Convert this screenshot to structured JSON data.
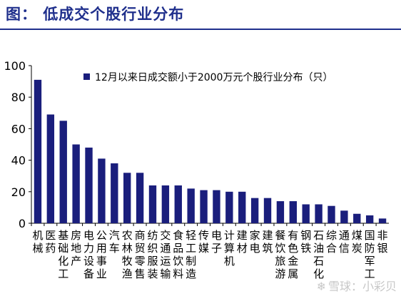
{
  "figure": {
    "title": "图： 低成交个股行业分布",
    "watermark": "雪球：小彩贝"
  },
  "chart_data": {
    "type": "bar",
    "legend": "12月以来日成交额小于2000万元个股行业分布（只）",
    "series": [
      {
        "name": "12月以来日成交额小于2000万元个股行业分布（只）",
        "color": "#1a1e7c"
      }
    ],
    "ylim": [
      0,
      100
    ],
    "yticks": [
      0,
      20,
      40,
      60,
      80,
      100
    ],
    "grid": false,
    "legend_position": "top-left",
    "categories": [
      "机械",
      "医药",
      "基础化工",
      "房地产",
      "电力设备",
      "公用事业",
      "汽车",
      "农林牧渔",
      "商贸零售",
      "纺织服装",
      "交通运输",
      "食品饮料",
      "轻工制造",
      "传媒",
      "电子",
      "计算机",
      "建材",
      "家电",
      "建筑",
      "餐饮旅游",
      "有色金属",
      "钢铁",
      "石油石化",
      "综合",
      "通信",
      "煤炭",
      "国防军工",
      "非银"
    ],
    "values": [
      91,
      69,
      65,
      50,
      48,
      41,
      38,
      32,
      32,
      24,
      24,
      24,
      22,
      21,
      21,
      20,
      20,
      16,
      16,
      14,
      14,
      12,
      12,
      11,
      8,
      6,
      5,
      3
    ]
  }
}
